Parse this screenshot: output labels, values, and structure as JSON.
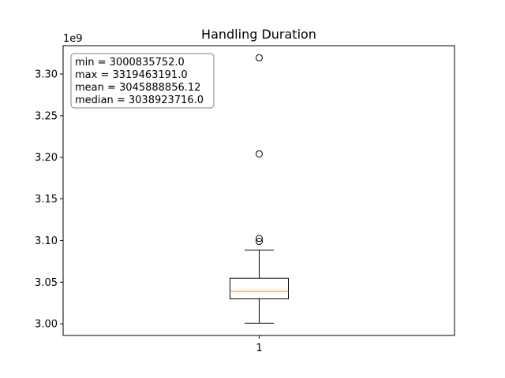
{
  "chart_data": {
    "type": "box",
    "title": "Handling Duration",
    "offset_label": "1e9",
    "y_scale_factor": 1000000000,
    "categories": [
      "1"
    ],
    "ylim": [
      2.986,
      3.334
    ],
    "yticks": [
      3.0,
      3.05,
      3.1,
      3.15,
      3.2,
      3.25,
      3.3
    ],
    "ytick_labels": [
      "3.00",
      "3.05",
      "3.10",
      "3.15",
      "3.20",
      "3.25",
      "3.30"
    ],
    "grid": false,
    "box": {
      "whisker_low": 3.0008,
      "q1": 3.03,
      "median": 3.0389,
      "q3": 3.0548,
      "whisker_high": 3.0885,
      "outliers": [
        3.099,
        3.1025,
        3.204,
        3.3195
      ]
    },
    "stats_lines": [
      "min = 3000835752.0",
      "max = 3319463191.0",
      "mean = 3045888856.12",
      "median = 3038923716.0"
    ],
    "colors": {
      "box": "#000000",
      "median": "#ff7f0e",
      "outlier_edge": "#000000",
      "stats_box_edge": "#808080"
    }
  }
}
